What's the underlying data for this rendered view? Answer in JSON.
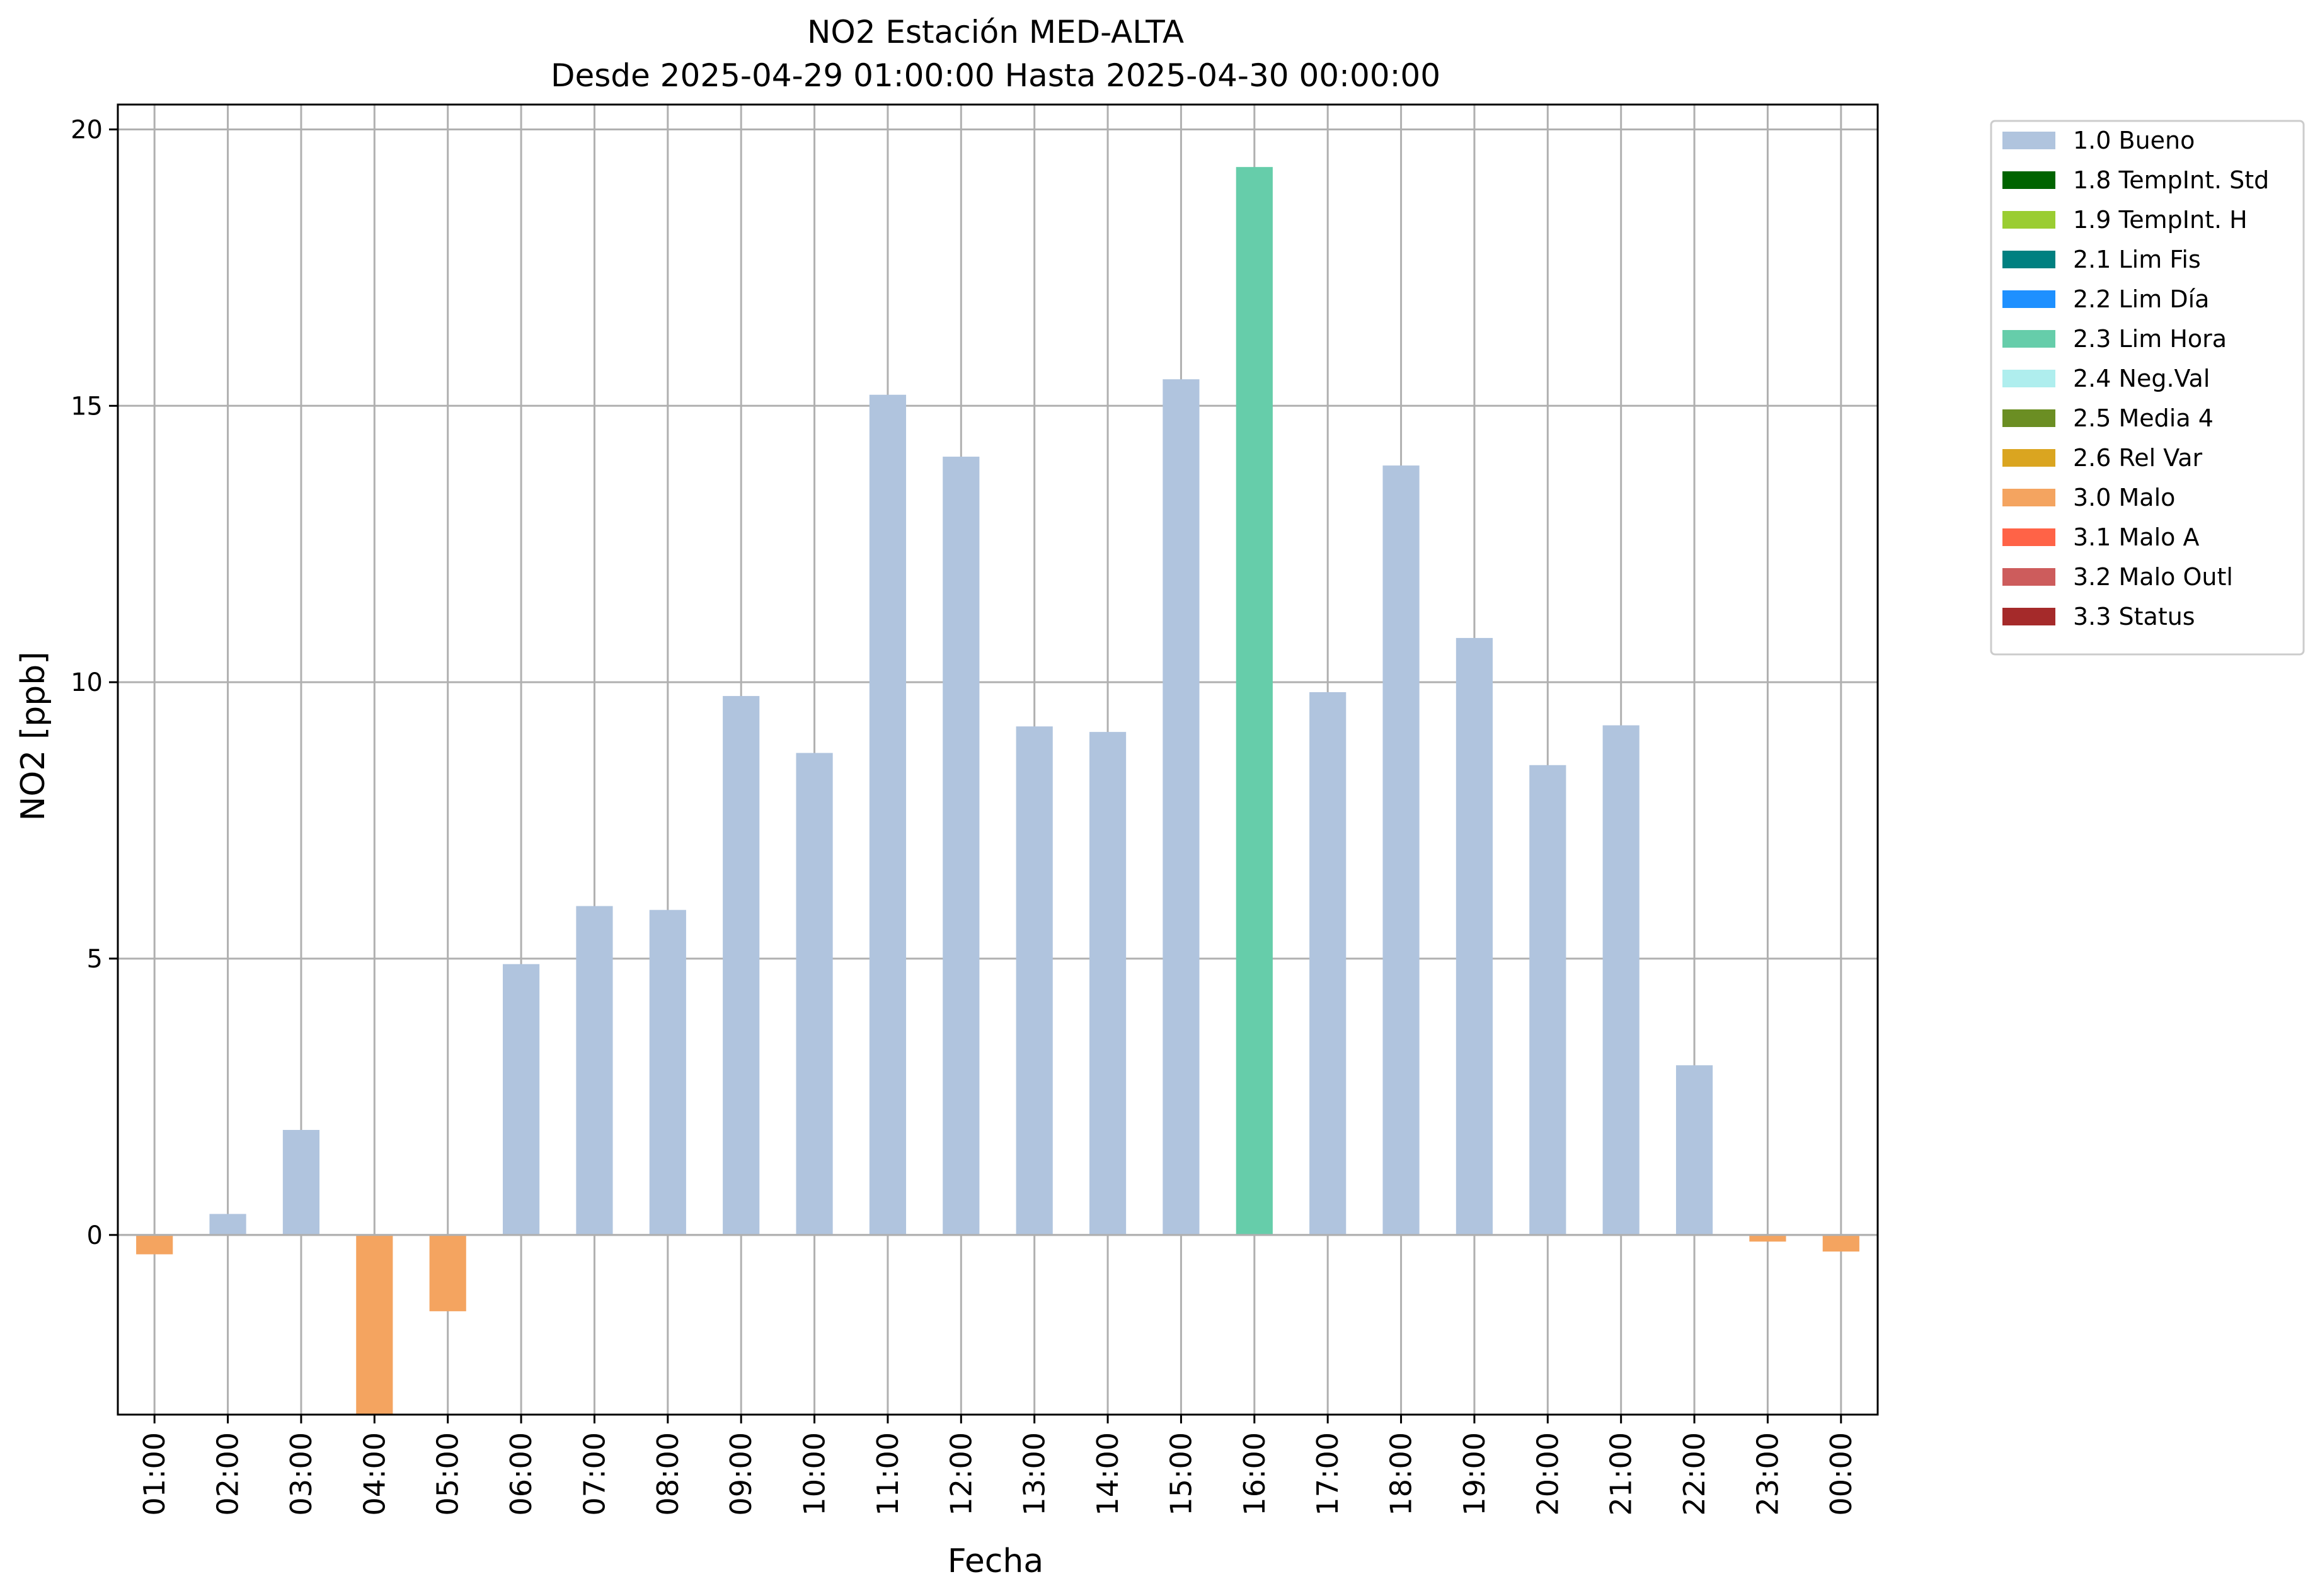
{
  "chart_data": {
    "type": "bar",
    "title": "NO2 Estación MED-ALTA",
    "subtitle": "Desde 2025-04-29 01:00:00 Hasta 2025-04-30 00:00:00",
    "xlabel": "Fecha",
    "ylabel": "NO2 [ppb]",
    "ylim": [
      -3.25,
      20.45
    ],
    "yticks": [
      0,
      5,
      10,
      15,
      20
    ],
    "grid": true,
    "legend_position": "outside-top-right",
    "categories": [
      "01:00",
      "02:00",
      "03:00",
      "04:00",
      "05:00",
      "06:00",
      "07:00",
      "08:00",
      "09:00",
      "10:00",
      "11:00",
      "12:00",
      "13:00",
      "14:00",
      "15:00",
      "16:00",
      "17:00",
      "18:00",
      "19:00",
      "20:00",
      "21:00",
      "22:00",
      "23:00",
      "00:00"
    ],
    "values": [
      -0.35,
      0.38,
      1.9,
      -3.25,
      -1.38,
      4.9,
      5.95,
      5.88,
      9.75,
      8.72,
      15.2,
      14.08,
      9.2,
      9.1,
      15.48,
      19.32,
      9.82,
      13.92,
      10.8,
      8.5,
      9.22,
      3.07,
      -0.12,
      -0.3
    ],
    "flags": [
      "3.0 Malo",
      "1.0 Bueno",
      "1.0 Bueno",
      "3.0 Malo",
      "3.0 Malo",
      "1.0 Bueno",
      "1.0 Bueno",
      "1.0 Bueno",
      "1.0 Bueno",
      "1.0 Bueno",
      "1.0 Bueno",
      "1.0 Bueno",
      "1.0 Bueno",
      "1.0 Bueno",
      "1.0 Bueno",
      "2.3 Lim Hora",
      "1.0 Bueno",
      "1.0 Bueno",
      "1.0 Bueno",
      "1.0 Bueno",
      "1.0 Bueno",
      "1.0 Bueno",
      "3.0 Malo",
      "3.0 Malo"
    ],
    "legend": [
      {
        "label": "1.0 Bueno",
        "color": "#b0c4de"
      },
      {
        "label": "1.8 TempInt. Std",
        "color": "#006400"
      },
      {
        "label": "1.9 TempInt. H",
        "color": "#9acd32"
      },
      {
        "label": "2.1 Lim Fis",
        "color": "#008080"
      },
      {
        "label": "2.2 Lim Día",
        "color": "#1e90ff"
      },
      {
        "label": "2.3 Lim Hora",
        "color": "#66cdaa"
      },
      {
        "label": "2.4 Neg.Val",
        "color": "#afeeee"
      },
      {
        "label": "2.5 Media 4",
        "color": "#6b8e23"
      },
      {
        "label": "2.6 Rel Var",
        "color": "#daa520"
      },
      {
        "label": "3.0 Malo",
        "color": "#f4a460"
      },
      {
        "label": "3.1 Malo A",
        "color": "#ff6347"
      },
      {
        "label": "3.2 Malo Outl",
        "color": "#cd5c5c"
      },
      {
        "label": "3.3 Status",
        "color": "#a52a2a"
      }
    ]
  }
}
